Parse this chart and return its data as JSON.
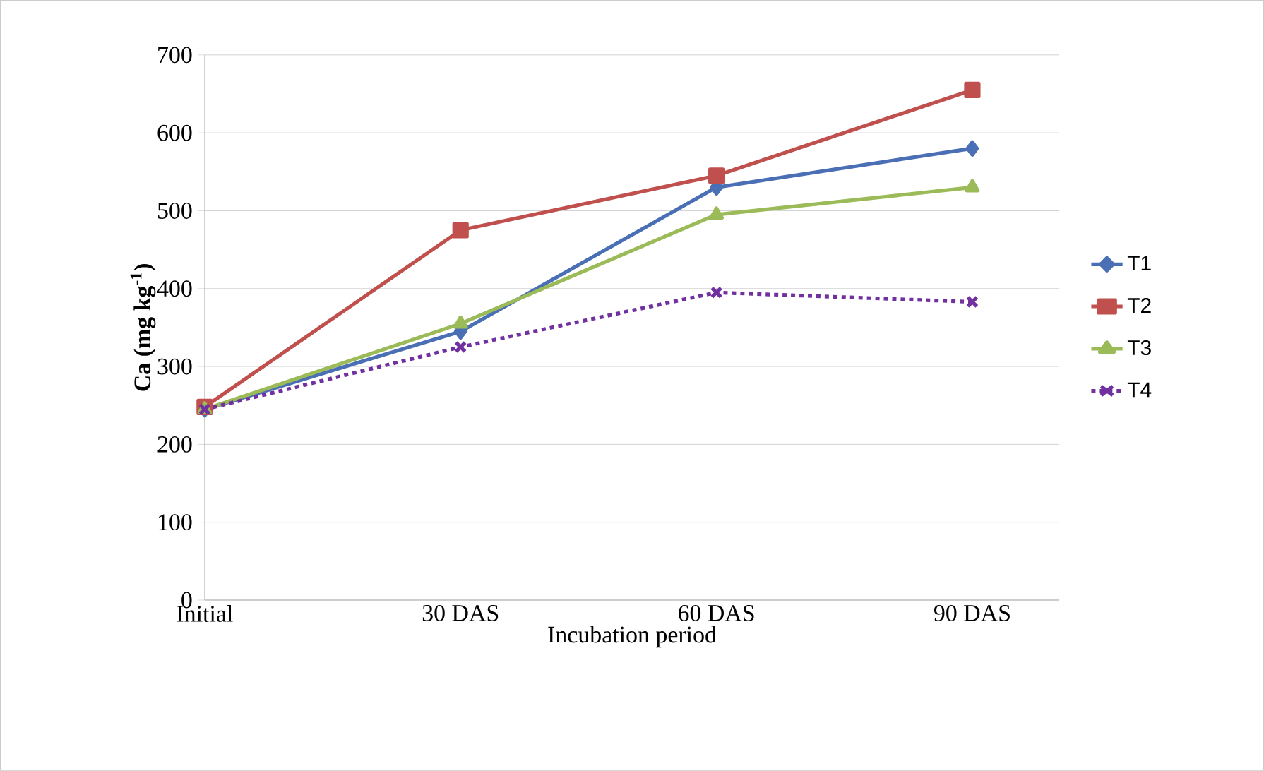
{
  "chart_data": {
    "type": "line",
    "xlabel": "Incubation period",
    "ylabel": "Ca (mg kg$^{-1}$)",
    "categories": [
      "Initial",
      "30 DAS",
      "60 DAS",
      "90 DAS"
    ],
    "ylim": [
      0,
      700
    ],
    "yticks": [
      0,
      100,
      200,
      300,
      400,
      500,
      600,
      700
    ],
    "grid": "y",
    "legend": "right",
    "series": [
      {
        "name": "T1",
        "color": "#4a6fb5",
        "marker": "diamond",
        "line_style": "solid",
        "values": [
          245,
          345,
          530,
          580
        ]
      },
      {
        "name": "T2",
        "color": "#c0504d",
        "marker": "square",
        "line_style": "solid",
        "values": [
          248,
          475,
          545,
          655
        ]
      },
      {
        "name": "T3",
        "color": "#9bbb59",
        "marker": "triangle",
        "line_style": "solid",
        "values": [
          245,
          355,
          495,
          530
        ]
      },
      {
        "name": "T4",
        "color": "#7030a0",
        "marker": "cross",
        "line_style": "dashed",
        "values": [
          245,
          325,
          395,
          383
        ]
      }
    ]
  }
}
